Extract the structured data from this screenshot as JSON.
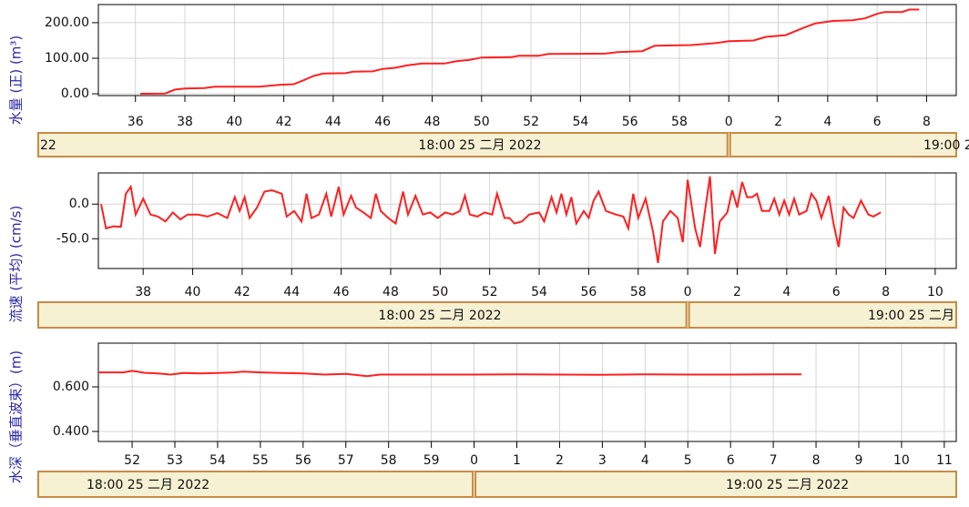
{
  "chart_data": [
    {
      "type": "line",
      "ylabel": "水量 (正) (m³)",
      "color": "#ff2020",
      "grid": true,
      "xlim": [
        34.5,
        69.2
      ],
      "ylim": [
        -5,
        251
      ],
      "xticks": [
        36,
        38,
        40,
        42,
        44,
        46,
        48,
        50,
        52,
        54,
        56,
        58,
        {
          "value": 60,
          "label": "0"
        },
        {
          "value": 62,
          "label": "2"
        },
        {
          "value": 64,
          "label": "4"
        },
        {
          "value": 66,
          "label": "6"
        },
        {
          "value": 68,
          "label": "8"
        }
      ],
      "yticks": [
        {
          "value": 0,
          "label": "0.00"
        },
        {
          "value": 100,
          "label": "100.00"
        },
        {
          "value": 200,
          "label": "200.00"
        }
      ],
      "x": [
        36.2,
        37.2,
        37.6,
        38,
        38.8,
        39.2,
        40,
        41,
        41.8,
        42.4,
        42.8,
        43.2,
        43.6,
        44.5,
        44.8,
        45.6,
        46,
        46.5,
        47,
        47.6,
        48.5,
        49,
        49.5,
        50,
        51.2,
        51.5,
        52.3,
        52.7,
        55,
        55.5,
        56.5,
        57,
        58.5,
        59,
        59.5,
        60,
        61,
        61.5,
        62.3,
        63,
        63.5,
        64.2,
        65,
        65.5,
        66,
        66.3,
        67,
        67.3,
        67.7
      ],
      "values": [
        0,
        1,
        12,
        15,
        16,
        20,
        20,
        20,
        25,
        27,
        38,
        50,
        57,
        58,
        62,
        63,
        70,
        73,
        80,
        85,
        85,
        92,
        95,
        102,
        103,
        107,
        107,
        112,
        113,
        117,
        120,
        135,
        137,
        140,
        143,
        148,
        150,
        160,
        165,
        185,
        198,
        205,
        207,
        212,
        225,
        230,
        230,
        237,
        237
      ],
      "date_bar": [
        "22",
        "18:00 25 二月 2022",
        "19:00 2"
      ],
      "date_ticks": [
        60
      ]
    },
    {
      "type": "line",
      "ylabel": "流速 (平均) (cm/s)",
      "color": "#ff2020",
      "grid": true,
      "xlim": [
        36.19,
        70.85
      ],
      "ylim": [
        -93,
        45
      ],
      "xticks": [
        38,
        40,
        42,
        44,
        46,
        48,
        50,
        52,
        54,
        56,
        58,
        {
          "value": 60,
          "label": "0"
        },
        {
          "value": 62,
          "label": "2"
        },
        {
          "value": 64,
          "label": "4"
        },
        {
          "value": 66,
          "label": "6"
        },
        {
          "value": 68,
          "label": "8"
        },
        {
          "value": 70,
          "label": "10"
        }
      ],
      "yticks": [
        {
          "value": -50,
          "label": "-50.0"
        },
        {
          "value": 0,
          "label": "0.0"
        }
      ],
      "x": [
        36.3,
        36.5,
        36.8,
        37.1,
        37.3,
        37.5,
        37.7,
        38,
        38.3,
        38.6,
        38.9,
        39.2,
        39.5,
        39.8,
        40.2,
        40.6,
        41,
        41.4,
        41.7,
        41.9,
        42.1,
        42.3,
        42.6,
        42.9,
        43.2,
        43.6,
        43.8,
        44.1,
        44.4,
        44.6,
        44.8,
        45.1,
        45.4,
        45.6,
        45.9,
        46.1,
        46.4,
        46.6,
        46.9,
        47.2,
        47.4,
        47.6,
        47.9,
        48.2,
        48.5,
        48.7,
        49,
        49.3,
        49.6,
        49.9,
        50.2,
        50.5,
        50.8,
        51,
        51.2,
        51.5,
        51.8,
        52.1,
        52.3,
        52.6,
        52.8,
        53,
        53.3,
        53.6,
        54,
        54.2,
        54.5,
        54.7,
        54.9,
        55.1,
        55.3,
        55.5,
        55.8,
        56,
        56.2,
        56.4,
        56.7,
        57.1,
        57.4,
        57.6,
        57.8,
        58,
        58.3,
        58.6,
        58.8,
        59,
        59.3,
        59.6,
        59.8,
        60,
        60.3,
        60.5,
        60.7,
        60.9,
        61.1,
        61.3,
        61.6,
        61.8,
        62,
        62.2,
        62.4,
        62.6,
        62.8,
        63,
        63.3,
        63.5,
        63.7,
        63.9,
        64.1,
        64.3,
        64.5,
        64.8,
        65,
        65.2,
        65.4,
        65.7,
        65.9,
        66.1,
        66.3,
        66.5,
        66.7,
        67,
        67.3,
        67.5,
        67.8
      ],
      "values": [
        0,
        -35,
        -32,
        -33,
        15,
        25,
        -15,
        8,
        -15,
        -18,
        -25,
        -12,
        -22,
        -15,
        -15,
        -18,
        -13,
        -20,
        10,
        -10,
        10,
        -20,
        -5,
        18,
        20,
        15,
        -18,
        -10,
        -25,
        15,
        -20,
        -15,
        15,
        -18,
        25,
        -15,
        12,
        -5,
        -12,
        -20,
        15,
        -10,
        -20,
        -28,
        18,
        -15,
        12,
        -15,
        -12,
        -20,
        -12,
        -15,
        -10,
        12,
        -15,
        -18,
        -12,
        -15,
        15,
        -20,
        -20,
        -28,
        -25,
        -15,
        -12,
        -25,
        10,
        -12,
        15,
        -15,
        10,
        -28,
        -10,
        -20,
        5,
        18,
        -10,
        -15,
        -18,
        -35,
        15,
        -20,
        8,
        -40,
        -85,
        -25,
        -10,
        -20,
        -55,
        35,
        -35,
        -62,
        -10,
        40,
        -72,
        -25,
        -12,
        20,
        -5,
        32,
        10,
        10,
        15,
        -10,
        -10,
        8,
        -15,
        5,
        -15,
        8,
        -15,
        -10,
        15,
        5,
        -20,
        12,
        -30,
        -62,
        -5,
        -15,
        -20,
        5,
        -15,
        -18,
        -12
      ],
      "date_bar": [
        "18:00 25 二月 2022",
        "19:00 25 二月"
      ],
      "date_ticks": [
        60
      ]
    },
    {
      "type": "line",
      "ylabel": "水深（垂直波束）(m)",
      "color": "#ff2020",
      "grid": true,
      "xlim": [
        51.21,
        71.28
      ],
      "ylim": [
        0.355,
        0.796
      ],
      "xticks": [
        52,
        53,
        54,
        55,
        56,
        57,
        58,
        59,
        {
          "value": 60,
          "label": "0"
        },
        {
          "value": 61,
          "label": "1"
        },
        {
          "value": 62,
          "label": "2"
        },
        {
          "value": 63,
          "label": "3"
        },
        {
          "value": 64,
          "label": "4"
        },
        {
          "value": 65,
          "label": "5"
        },
        {
          "value": 66,
          "label": "6"
        },
        {
          "value": 67,
          "label": "7"
        },
        {
          "value": 68,
          "label": "8"
        },
        {
          "value": 69,
          "label": "9"
        },
        {
          "value": 70,
          "label": "10"
        },
        {
          "value": 71,
          "label": "11"
        }
      ],
      "yticks": [
        {
          "value": 0.4,
          "label": "0.400"
        },
        {
          "value": 0.6,
          "label": "0.600"
        }
      ],
      "x": [
        51.21,
        51.8,
        52,
        52.3,
        52.6,
        52.9,
        53.2,
        53.6,
        54,
        54.4,
        54.6,
        55,
        55.5,
        56,
        56.5,
        57,
        57.5,
        57.8,
        58.5,
        59,
        60,
        61,
        62,
        63,
        64,
        65,
        66,
        67,
        67.66
      ],
      "values": [
        0.665,
        0.665,
        0.672,
        0.663,
        0.66,
        0.655,
        0.662,
        0.66,
        0.662,
        0.665,
        0.668,
        0.665,
        0.662,
        0.66,
        0.655,
        0.658,
        0.648,
        0.655,
        0.655,
        0.655,
        0.655,
        0.656,
        0.655,
        0.654,
        0.656,
        0.655,
        0.655,
        0.656,
        0.656
      ],
      "date_bar": [
        "18:00 25 二月 2022",
        "19:00 25 二月 2022"
      ],
      "date_ticks": [
        60
      ]
    }
  ]
}
